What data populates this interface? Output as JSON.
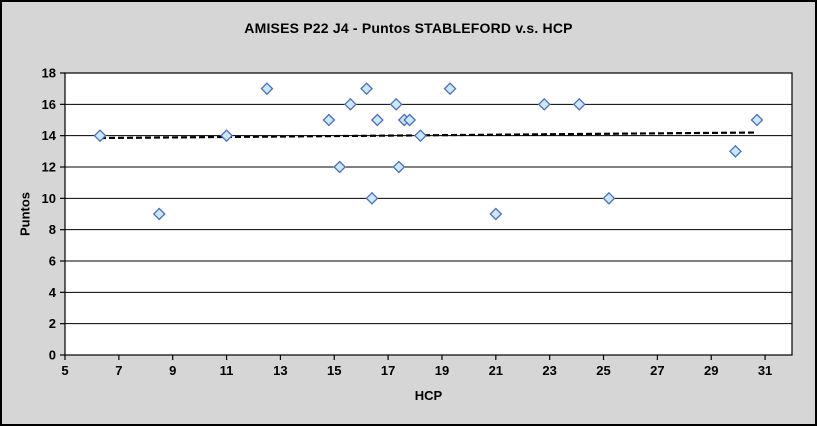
{
  "chart_data": {
    "type": "scatter",
    "title": "AMISES P22 J4 - Puntos STABLEFORD v.s. HCP",
    "xlabel": "HCP",
    "ylabel": "Puntos",
    "xlim": [
      5,
      32
    ],
    "ylim": [
      0,
      18
    ],
    "x_ticks": [
      5,
      7,
      9,
      11,
      13,
      15,
      17,
      19,
      21,
      23,
      25,
      27,
      29,
      31
    ],
    "y_ticks": [
      0,
      2,
      4,
      6,
      8,
      10,
      12,
      14,
      16,
      18
    ],
    "grid": "horizontal",
    "legend": "none",
    "points": [
      {
        "x": 6.3,
        "y": 14
      },
      {
        "x": 8.5,
        "y": 9
      },
      {
        "x": 11.0,
        "y": 14
      },
      {
        "x": 12.5,
        "y": 17
      },
      {
        "x": 14.8,
        "y": 15
      },
      {
        "x": 15.2,
        "y": 12
      },
      {
        "x": 15.6,
        "y": 16
      },
      {
        "x": 16.2,
        "y": 17
      },
      {
        "x": 16.4,
        "y": 10
      },
      {
        "x": 16.6,
        "y": 15
      },
      {
        "x": 17.3,
        "y": 16
      },
      {
        "x": 17.4,
        "y": 12
      },
      {
        "x": 17.6,
        "y": 15
      },
      {
        "x": 17.8,
        "y": 15
      },
      {
        "x": 18.2,
        "y": 14
      },
      {
        "x": 19.3,
        "y": 17
      },
      {
        "x": 21.0,
        "y": 9
      },
      {
        "x": 22.8,
        "y": 16
      },
      {
        "x": 24.1,
        "y": 16
      },
      {
        "x": 25.2,
        "y": 10
      },
      {
        "x": 29.9,
        "y": 13
      },
      {
        "x": 30.7,
        "y": 15
      }
    ],
    "trendline": {
      "style": "dashed",
      "x_start": 6.3,
      "y_start": 13.85,
      "x_end": 30.7,
      "y_end": 14.2
    },
    "colors": {
      "background": "#d6d6d6",
      "plot_background": "#ffffff",
      "marker_fill": "#c9e9f6",
      "marker_stroke": "#4f6db8",
      "gridline": "#000000",
      "axis": "#000000",
      "trendline": "#000000"
    }
  }
}
